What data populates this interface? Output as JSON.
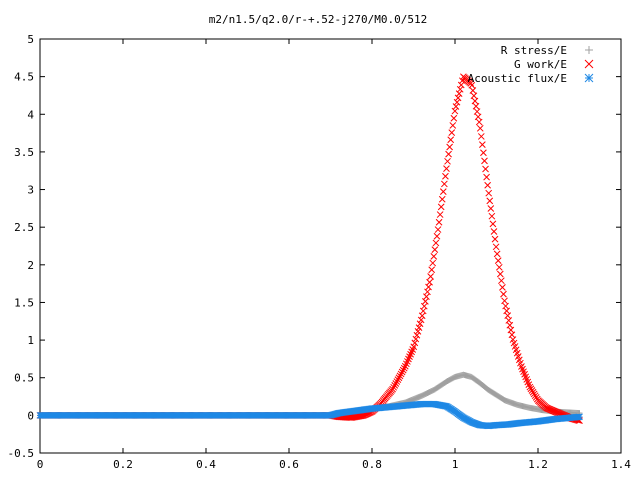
{
  "chart_data": {
    "type": "scatter",
    "title": "m2/n1.5/q2.0/r-+.52-j270/M0.0/512",
    "xlabel": "",
    "ylabel": "",
    "xlim": [
      0,
      1.4
    ],
    "ylim": [
      -0.5,
      5
    ],
    "x_ticks": [
      "0",
      "0.2",
      "0.4",
      "0.6",
      "0.8",
      "1",
      "1.2",
      "1.4"
    ],
    "y_ticks": [
      "-0.5",
      "0",
      "0.5",
      "1",
      "1.5",
      "2",
      "2.5",
      "3",
      "3.5",
      "4",
      "4.5",
      "5"
    ],
    "grid": false,
    "legend_position": "top-right",
    "x_range_data": [
      0,
      1.3
    ],
    "series": [
      {
        "name": "R stress/E",
        "marker": "plus",
        "color": "#a0a0a0",
        "points": [
          [
            0.0,
            0
          ],
          [
            0.7,
            0
          ],
          [
            0.72,
            0.02
          ],
          [
            0.76,
            0.06
          ],
          [
            0.8,
            0.09
          ],
          [
            0.84,
            0.12
          ],
          [
            0.88,
            0.17
          ],
          [
            0.92,
            0.26
          ],
          [
            0.95,
            0.34
          ],
          [
            0.98,
            0.45
          ],
          [
            1.0,
            0.51
          ],
          [
            1.02,
            0.54
          ],
          [
            1.04,
            0.51
          ],
          [
            1.06,
            0.43
          ],
          [
            1.08,
            0.34
          ],
          [
            1.1,
            0.27
          ],
          [
            1.12,
            0.2
          ],
          [
            1.15,
            0.14
          ],
          [
            1.18,
            0.1
          ],
          [
            1.21,
            0.07
          ],
          [
            1.24,
            0.05
          ],
          [
            1.27,
            0.04
          ],
          [
            1.3,
            0.03
          ]
        ]
      },
      {
        "name": "G work/E",
        "marker": "cross",
        "color": "#ff0000",
        "points": [
          [
            0.0,
            0
          ],
          [
            0.7,
            0
          ],
          [
            0.72,
            -0.02
          ],
          [
            0.75,
            -0.03
          ],
          [
            0.78,
            0.0
          ],
          [
            0.8,
            0.05
          ],
          [
            0.82,
            0.15
          ],
          [
            0.85,
            0.35
          ],
          [
            0.88,
            0.65
          ],
          [
            0.9,
            0.9
          ],
          [
            0.92,
            1.3
          ],
          [
            0.94,
            1.8
          ],
          [
            0.96,
            2.5
          ],
          [
            0.98,
            3.3
          ],
          [
            1.0,
            4.05
          ],
          [
            1.02,
            4.5
          ],
          [
            1.04,
            4.4
          ],
          [
            1.06,
            3.85
          ],
          [
            1.08,
            3.0
          ],
          [
            1.1,
            2.2
          ],
          [
            1.12,
            1.5
          ],
          [
            1.14,
            1.0
          ],
          [
            1.16,
            0.65
          ],
          [
            1.18,
            0.38
          ],
          [
            1.2,
            0.2
          ],
          [
            1.22,
            0.1
          ],
          [
            1.25,
            0.03
          ],
          [
            1.28,
            -0.04
          ],
          [
            1.3,
            -0.07
          ]
        ]
      },
      {
        "name": "Acoustic flux/E",
        "marker": "star",
        "color": "#1e88e5",
        "points": [
          [
            0.0,
            0
          ],
          [
            0.7,
            0
          ],
          [
            0.72,
            0.03
          ],
          [
            0.76,
            0.06
          ],
          [
            0.8,
            0.09
          ],
          [
            0.84,
            0.11
          ],
          [
            0.88,
            0.13
          ],
          [
            0.92,
            0.15
          ],
          [
            0.95,
            0.15
          ],
          [
            0.98,
            0.12
          ],
          [
            1.0,
            0.05
          ],
          [
            1.02,
            -0.03
          ],
          [
            1.04,
            -0.09
          ],
          [
            1.06,
            -0.13
          ],
          [
            1.08,
            -0.14
          ],
          [
            1.1,
            -0.13
          ],
          [
            1.13,
            -0.12
          ],
          [
            1.16,
            -0.1
          ],
          [
            1.2,
            -0.08
          ],
          [
            1.24,
            -0.05
          ],
          [
            1.28,
            -0.03
          ],
          [
            1.3,
            -0.02
          ]
        ]
      }
    ]
  }
}
